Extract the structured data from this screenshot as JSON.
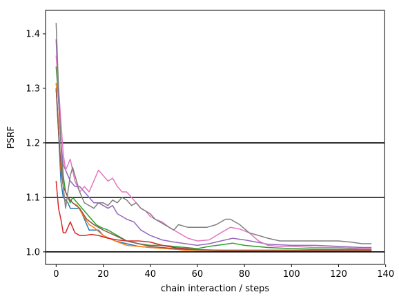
{
  "chart_data": {
    "type": "line",
    "title": "",
    "xlabel": "chain interaction / steps",
    "ylabel": "PSRF",
    "xlim": [
      -4.5,
      139.5
    ],
    "ylim": [
      0.977,
      1.443
    ],
    "xticks": [
      0,
      20,
      40,
      60,
      80,
      100,
      120,
      140
    ],
    "yticks": [
      1.0,
      1.1,
      1.2,
      1.3,
      1.4
    ],
    "xtick_labels": [
      "0",
      "20",
      "40",
      "60",
      "80",
      "100",
      "120",
      "140"
    ],
    "ytick_labels": [
      "1.0",
      "1.1",
      "1.2",
      "1.3",
      "1.4"
    ],
    "grid": false,
    "hlines": [
      1.0,
      1.1,
      1.2
    ],
    "series": [
      {
        "color": "#1f77b4",
        "points": [
          [
            0,
            1.3
          ],
          [
            1,
            1.22
          ],
          [
            2,
            1.13
          ],
          [
            3,
            1.1
          ],
          [
            5,
            1.09
          ],
          [
            6,
            1.08
          ],
          [
            7,
            1.08
          ],
          [
            10,
            1.08
          ],
          [
            12,
            1.06
          ],
          [
            14,
            1.04
          ],
          [
            18,
            1.04
          ],
          [
            20,
            1.03
          ],
          [
            25,
            1.02
          ],
          [
            30,
            1.015
          ],
          [
            35,
            1.01
          ],
          [
            40,
            1.008
          ],
          [
            50,
            1.005
          ],
          [
            60,
            1.003
          ],
          [
            80,
            1.002
          ],
          [
            100,
            1.002
          ],
          [
            120,
            1.002
          ],
          [
            134,
            1.002
          ]
        ]
      },
      {
        "color": "#ff7f0e",
        "points": [
          [
            0,
            1.31
          ],
          [
            1,
            1.23
          ],
          [
            2,
            1.15
          ],
          [
            3,
            1.12
          ],
          [
            4,
            1.11
          ],
          [
            5,
            1.1
          ],
          [
            7,
            1.09
          ],
          [
            9,
            1.085
          ],
          [
            11,
            1.07
          ],
          [
            14,
            1.05
          ],
          [
            16,
            1.045
          ],
          [
            20,
            1.03
          ],
          [
            25,
            1.02
          ],
          [
            30,
            1.012
          ],
          [
            40,
            1.008
          ],
          [
            50,
            1.005
          ],
          [
            55,
            1.003
          ],
          [
            60,
            1.003
          ],
          [
            70,
            1.002
          ],
          [
            80,
            1.002
          ],
          [
            100,
            1.002
          ],
          [
            120,
            1.002
          ],
          [
            134,
            1.002
          ]
        ]
      },
      {
        "color": "#2ca02c",
        "points": [
          [
            0,
            1.34
          ],
          [
            1,
            1.28
          ],
          [
            2,
            1.2
          ],
          [
            3,
            1.14
          ],
          [
            4,
            1.11
          ],
          [
            5,
            1.1
          ],
          [
            6,
            1.09
          ],
          [
            7,
            1.1
          ],
          [
            9,
            1.09
          ],
          [
            11,
            1.08
          ],
          [
            13,
            1.07
          ],
          [
            15,
            1.06
          ],
          [
            17,
            1.05
          ],
          [
            19,
            1.045
          ],
          [
            22,
            1.04
          ],
          [
            26,
            1.03
          ],
          [
            30,
            1.02
          ],
          [
            35,
            1.015
          ],
          [
            40,
            1.012
          ],
          [
            45,
            1.012
          ],
          [
            50,
            1.01
          ],
          [
            55,
            1.008
          ],
          [
            60,
            1.006
          ],
          [
            65,
            1.01
          ],
          [
            70,
            1.013
          ],
          [
            75,
            1.016
          ],
          [
            80,
            1.012
          ],
          [
            90,
            1.008
          ],
          [
            100,
            1.006
          ],
          [
            110,
            1.005
          ],
          [
            120,
            1.005
          ],
          [
            134,
            1.005
          ]
        ]
      },
      {
        "color": "#d62728",
        "points": [
          [
            0,
            1.13
          ],
          [
            1,
            1.08
          ],
          [
            2,
            1.06
          ],
          [
            3,
            1.035
          ],
          [
            4,
            1.035
          ],
          [
            6,
            1.055
          ],
          [
            8,
            1.035
          ],
          [
            10,
            1.03
          ],
          [
            12,
            1.03
          ],
          [
            15,
            1.032
          ],
          [
            18,
            1.03
          ],
          [
            22,
            1.025
          ],
          [
            26,
            1.022
          ],
          [
            30,
            1.02
          ],
          [
            35,
            1.02
          ],
          [
            40,
            1.018
          ],
          [
            45,
            1.012
          ],
          [
            50,
            1.008
          ],
          [
            60,
            1.004
          ],
          [
            70,
            1.003
          ],
          [
            80,
            1.003
          ],
          [
            100,
            1.003
          ],
          [
            120,
            1.003
          ],
          [
            134,
            1.003
          ]
        ]
      },
      {
        "color": "#9467bd",
        "points": [
          [
            0,
            1.39
          ],
          [
            1,
            1.28
          ],
          [
            2,
            1.2
          ],
          [
            3,
            1.16
          ],
          [
            4,
            1.15
          ],
          [
            5,
            1.14
          ],
          [
            6,
            1.13
          ],
          [
            8,
            1.12
          ],
          [
            10,
            1.12
          ],
          [
            12,
            1.11
          ],
          [
            14,
            1.1
          ],
          [
            16,
            1.09
          ],
          [
            18,
            1.09
          ],
          [
            20,
            1.085
          ],
          [
            22,
            1.08
          ],
          [
            24,
            1.085
          ],
          [
            26,
            1.07
          ],
          [
            28,
            1.065
          ],
          [
            30,
            1.06
          ],
          [
            33,
            1.055
          ],
          [
            36,
            1.04
          ],
          [
            40,
            1.03
          ],
          [
            45,
            1.022
          ],
          [
            50,
            1.018
          ],
          [
            55,
            1.015
          ],
          [
            60,
            1.012
          ],
          [
            65,
            1.015
          ],
          [
            70,
            1.02
          ],
          [
            75,
            1.025
          ],
          [
            80,
            1.022
          ],
          [
            85,
            1.018
          ],
          [
            90,
            1.014
          ],
          [
            100,
            1.012
          ],
          [
            110,
            1.012
          ],
          [
            120,
            1.01
          ],
          [
            130,
            1.008
          ],
          [
            134,
            1.008
          ]
        ]
      },
      {
        "color": "#8c564b",
        "points": [
          [
            0,
            1.3
          ],
          [
            1,
            1.22
          ],
          [
            2,
            1.16
          ],
          [
            3,
            1.12
          ],
          [
            5,
            1.1
          ],
          [
            7,
            1.09
          ],
          [
            10,
            1.08
          ],
          [
            13,
            1.06
          ],
          [
            16,
            1.05
          ],
          [
            20,
            1.04
          ],
          [
            25,
            1.03
          ],
          [
            30,
            1.02
          ],
          [
            35,
            1.015
          ],
          [
            40,
            1.01
          ],
          [
            45,
            1.008
          ],
          [
            50,
            1.006
          ],
          [
            60,
            1.004
          ],
          [
            70,
            1.003
          ],
          [
            80,
            1.003
          ],
          [
            90,
            1.003
          ],
          [
            100,
            1.003
          ],
          [
            110,
            1.003
          ],
          [
            120,
            1.003
          ],
          [
            134,
            1.003
          ]
        ]
      },
      {
        "color": "#e377c2",
        "points": [
          [
            0,
            1.36
          ],
          [
            1,
            1.3
          ],
          [
            2,
            1.24
          ],
          [
            3,
            1.18
          ],
          [
            4,
            1.15
          ],
          [
            5,
            1.16
          ],
          [
            6,
            1.17
          ],
          [
            7,
            1.15
          ],
          [
            8,
            1.13
          ],
          [
            10,
            1.11
          ],
          [
            12,
            1.12
          ],
          [
            14,
            1.11
          ],
          [
            16,
            1.13
          ],
          [
            18,
            1.15
          ],
          [
            20,
            1.14
          ],
          [
            22,
            1.13
          ],
          [
            24,
            1.135
          ],
          [
            26,
            1.12
          ],
          [
            28,
            1.11
          ],
          [
            30,
            1.11
          ],
          [
            32,
            1.1
          ],
          [
            34,
            1.09
          ],
          [
            36,
            1.08
          ],
          [
            38,
            1.075
          ],
          [
            40,
            1.065
          ],
          [
            42,
            1.06
          ],
          [
            45,
            1.055
          ],
          [
            48,
            1.045
          ],
          [
            52,
            1.035
          ],
          [
            56,
            1.025
          ],
          [
            60,
            1.02
          ],
          [
            65,
            1.022
          ],
          [
            70,
            1.035
          ],
          [
            74,
            1.045
          ],
          [
            78,
            1.042
          ],
          [
            82,
            1.035
          ],
          [
            86,
            1.02
          ],
          [
            90,
            1.012
          ],
          [
            95,
            1.01
          ],
          [
            100,
            1.01
          ],
          [
            110,
            1.008
          ],
          [
            120,
            1.008
          ],
          [
            130,
            1.006
          ],
          [
            134,
            1.006
          ]
        ]
      },
      {
        "color": "#7f7f7f",
        "points": [
          [
            0,
            1.42
          ],
          [
            1,
            1.3
          ],
          [
            2,
            1.2
          ],
          [
            3,
            1.12
          ],
          [
            4,
            1.08
          ],
          [
            5,
            1.11
          ],
          [
            6,
            1.14
          ],
          [
            7,
            1.155
          ],
          [
            8,
            1.14
          ],
          [
            10,
            1.11
          ],
          [
            12,
            1.09
          ],
          [
            14,
            1.085
          ],
          [
            16,
            1.08
          ],
          [
            18,
            1.09
          ],
          [
            20,
            1.09
          ],
          [
            22,
            1.085
          ],
          [
            24,
            1.095
          ],
          [
            26,
            1.09
          ],
          [
            28,
            1.1
          ],
          [
            30,
            1.095
          ],
          [
            32,
            1.085
          ],
          [
            34,
            1.09
          ],
          [
            36,
            1.08
          ],
          [
            38,
            1.075
          ],
          [
            40,
            1.07
          ],
          [
            42,
            1.06
          ],
          [
            44,
            1.055
          ],
          [
            46,
            1.05
          ],
          [
            48,
            1.045
          ],
          [
            50,
            1.04
          ],
          [
            52,
            1.05
          ],
          [
            56,
            1.045
          ],
          [
            60,
            1.045
          ],
          [
            64,
            1.045
          ],
          [
            68,
            1.05
          ],
          [
            72,
            1.06
          ],
          [
            74,
            1.06
          ],
          [
            78,
            1.05
          ],
          [
            82,
            1.035
          ],
          [
            86,
            1.03
          ],
          [
            90,
            1.025
          ],
          [
            95,
            1.02
          ],
          [
            100,
            1.02
          ],
          [
            110,
            1.02
          ],
          [
            120,
            1.02
          ],
          [
            125,
            1.018
          ],
          [
            130,
            1.015
          ],
          [
            134,
            1.015
          ]
        ]
      }
    ]
  }
}
